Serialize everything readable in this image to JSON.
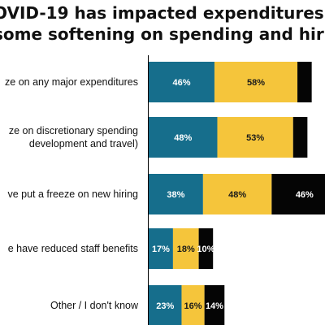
{
  "title": {
    "line1": "OVID-19 has impacted expenditures",
    "line2": "some softening on spending and hiri"
  },
  "colors": {
    "series_a": "#166e8c",
    "series_b": "#f5c53b",
    "series_c": "#050505",
    "label_light": "#ffffff",
    "label_dark": "#1a1a1a"
  },
  "chart_data": {
    "type": "bar",
    "orientation": "horizontal",
    "stacked": true,
    "categories": [
      [
        "ze on any major expenditures"
      ],
      [
        "ze on discretionary spending",
        "development and travel)"
      ],
      [
        "ve put a freeze on new hiring"
      ],
      [
        "e have reduced staff benefits"
      ],
      [
        "Other / I don't know"
      ]
    ],
    "series": [
      {
        "values": [
          46,
          48,
          38,
          17,
          23
        ],
        "labels": [
          "46%",
          "48%",
          "38%",
          "17%",
          "23%"
        ],
        "color": "#166e8c"
      },
      {
        "values": [
          58,
          53,
          48,
          18,
          16
        ],
        "labels": [
          "58%",
          "53%",
          "48%",
          "18%",
          "16%"
        ],
        "color": "#f5c53b"
      },
      {
        "values": [
          10,
          10,
          46,
          10,
          14
        ],
        "labels": [
          "",
          "",
          "46%",
          "10%",
          "14%"
        ],
        "color": "#050505"
      }
    ],
    "grid": false,
    "legend": "none"
  }
}
